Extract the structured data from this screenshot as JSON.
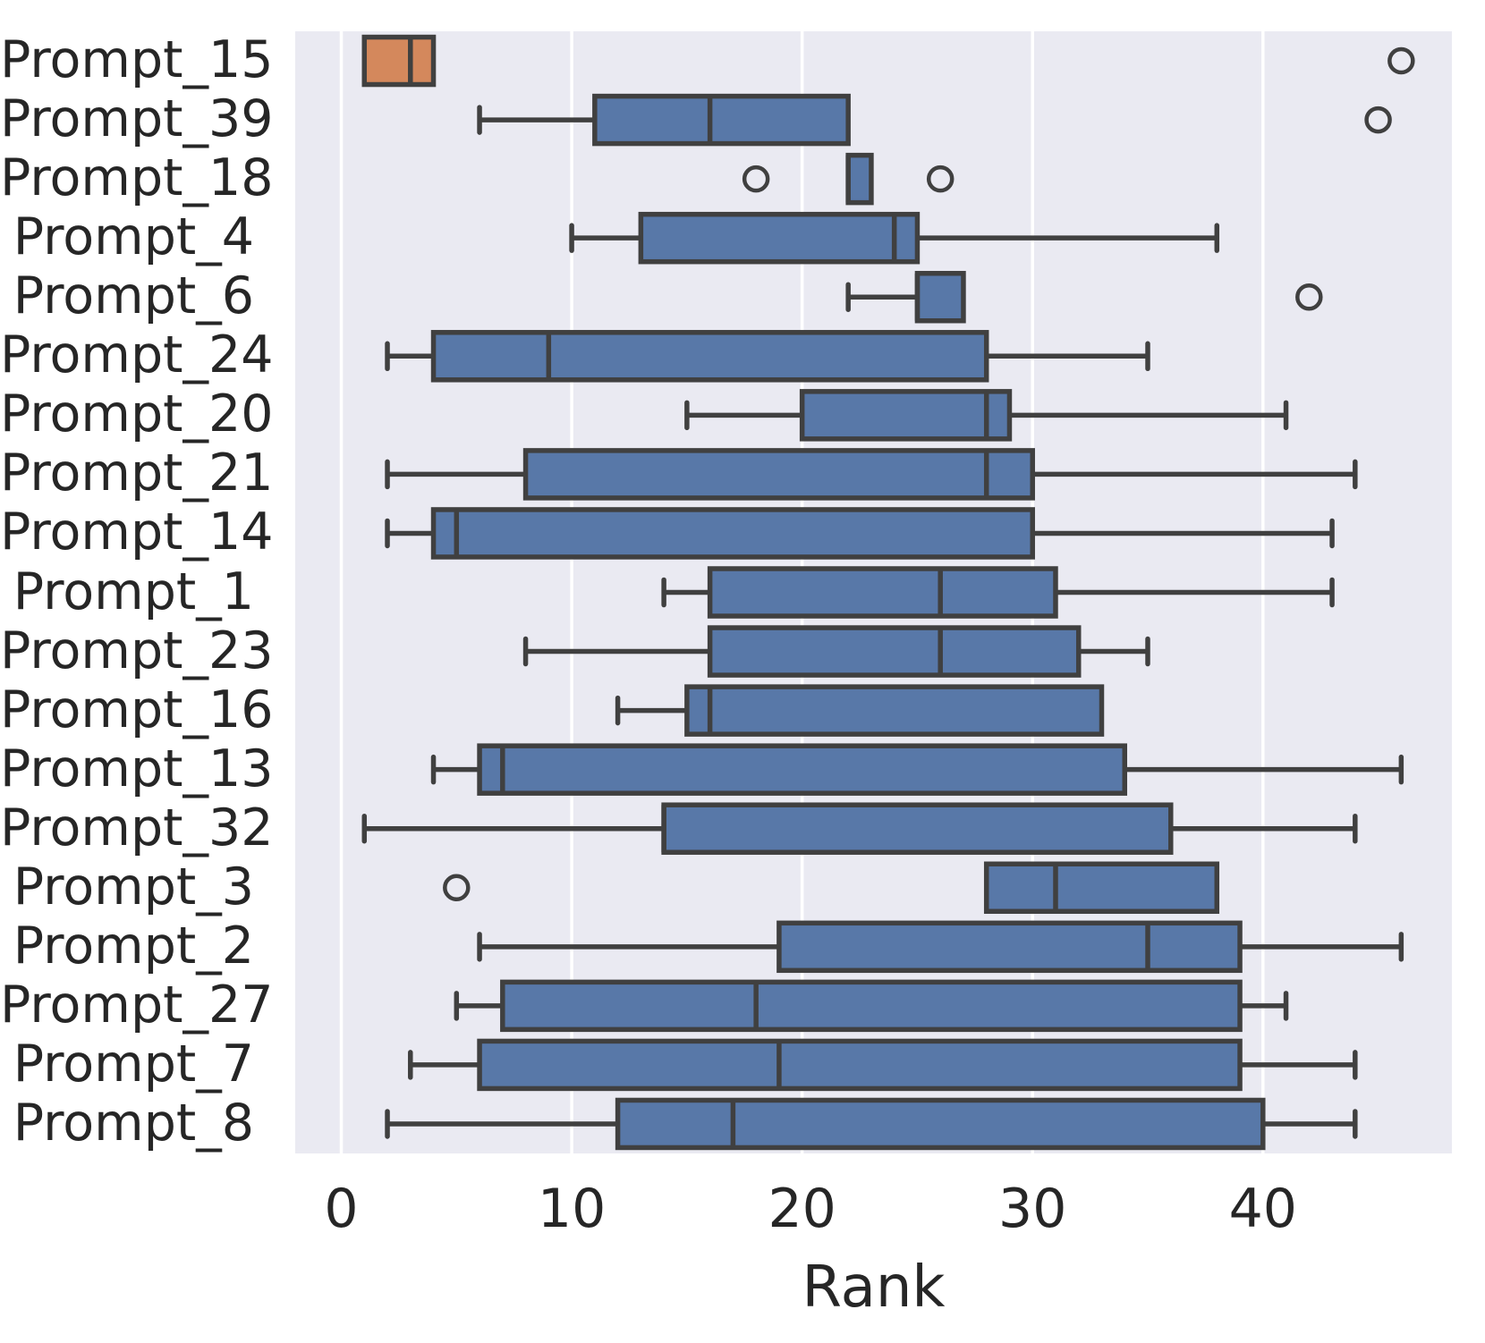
{
  "figure": {
    "background": "#ffffff",
    "axes_background": "#eaeaf2",
    "grid_color": "#ffffff",
    "line_color": "#404040",
    "text_color": "#262626",
    "box_color_default": "#5878a8",
    "box_color_highlight": "#d4885c"
  },
  "chart_data": {
    "type": "boxplot_horizontal",
    "title": "",
    "xlabel": "Rank",
    "ylabel": "",
    "grid": true,
    "legend": "none",
    "xlim": [
      -2,
      48.2
    ],
    "x_ticks": [
      0,
      10,
      20,
      30,
      40
    ],
    "categories": [
      "Prompt_15",
      "Prompt_39",
      "Prompt_18",
      "Prompt_4",
      "Prompt_6",
      "Prompt_24",
      "Prompt_20",
      "Prompt_21",
      "Prompt_14",
      "Prompt_1",
      "Prompt_23",
      "Prompt_16",
      "Prompt_13",
      "Prompt_32",
      "Prompt_3",
      "Prompt_2",
      "Prompt_27",
      "Prompt_7",
      "Prompt_8"
    ],
    "series": [
      {
        "name": "Prompt_15",
        "whislo": 1,
        "q1": 1,
        "med": 3,
        "q3": 4,
        "whishi": 4,
        "fliers": [
          46
        ],
        "color": "#d4885c"
      },
      {
        "name": "Prompt_39",
        "whislo": 6,
        "q1": 11,
        "med": 16,
        "q3": 22,
        "whishi": 22,
        "fliers": [
          45
        ],
        "color": "#5878a8"
      },
      {
        "name": "Prompt_18",
        "whislo": 22,
        "q1": 22,
        "med": 22,
        "q3": 23,
        "whishi": 23,
        "fliers": [
          18,
          26
        ],
        "color": "#5878a8"
      },
      {
        "name": "Prompt_4",
        "whislo": 10,
        "q1": 13,
        "med": 24,
        "q3": 25,
        "whishi": 38,
        "fliers": [],
        "color": "#5878a8"
      },
      {
        "name": "Prompt_6",
        "whislo": 22,
        "q1": 25,
        "med": 25,
        "q3": 27,
        "whishi": 27,
        "fliers": [
          42
        ],
        "color": "#5878a8"
      },
      {
        "name": "Prompt_24",
        "whislo": 2,
        "q1": 4,
        "med": 9,
        "q3": 28,
        "whishi": 35,
        "fliers": [],
        "color": "#5878a8"
      },
      {
        "name": "Prompt_20",
        "whislo": 15,
        "q1": 20,
        "med": 28,
        "q3": 29,
        "whishi": 41,
        "fliers": [],
        "color": "#5878a8"
      },
      {
        "name": "Prompt_21",
        "whislo": 2,
        "q1": 8,
        "med": 28,
        "q3": 30,
        "whishi": 44,
        "fliers": [],
        "color": "#5878a8"
      },
      {
        "name": "Prompt_14",
        "whislo": 2,
        "q1": 4,
        "med": 5,
        "q3": 30,
        "whishi": 43,
        "fliers": [],
        "color": "#5878a8"
      },
      {
        "name": "Prompt_1",
        "whislo": 14,
        "q1": 16,
        "med": 26,
        "q3": 31,
        "whishi": 43,
        "fliers": [],
        "color": "#5878a8"
      },
      {
        "name": "Prompt_23",
        "whislo": 8,
        "q1": 16,
        "med": 26,
        "q3": 32,
        "whishi": 35,
        "fliers": [],
        "color": "#5878a8"
      },
      {
        "name": "Prompt_16",
        "whislo": 12,
        "q1": 15,
        "med": 16,
        "q3": 33,
        "whishi": 33,
        "fliers": [],
        "color": "#5878a8"
      },
      {
        "name": "Prompt_13",
        "whislo": 4,
        "q1": 6,
        "med": 7,
        "q3": 34,
        "whishi": 46,
        "fliers": [],
        "color": "#5878a8"
      },
      {
        "name": "Prompt_32",
        "whislo": 1,
        "q1": 14,
        "med": 14,
        "q3": 36,
        "whishi": 44,
        "fliers": [],
        "color": "#5878a8"
      },
      {
        "name": "Prompt_3",
        "whislo": 28,
        "q1": 28,
        "med": 31,
        "q3": 38,
        "whishi": 38,
        "fliers": [
          5
        ],
        "color": "#5878a8"
      },
      {
        "name": "Prompt_2",
        "whislo": 6,
        "q1": 19,
        "med": 35,
        "q3": 39,
        "whishi": 46,
        "fliers": [],
        "color": "#5878a8"
      },
      {
        "name": "Prompt_27",
        "whislo": 5,
        "q1": 7,
        "med": 18,
        "q3": 39,
        "whishi": 41,
        "fliers": [],
        "color": "#5878a8"
      },
      {
        "name": "Prompt_7",
        "whislo": 3,
        "q1": 6,
        "med": 19,
        "q3": 39,
        "whishi": 44,
        "fliers": [],
        "color": "#5878a8"
      },
      {
        "name": "Prompt_8",
        "whislo": 2,
        "q1": 12,
        "med": 17,
        "q3": 40,
        "whishi": 44,
        "fliers": [],
        "color": "#5878a8"
      }
    ]
  }
}
